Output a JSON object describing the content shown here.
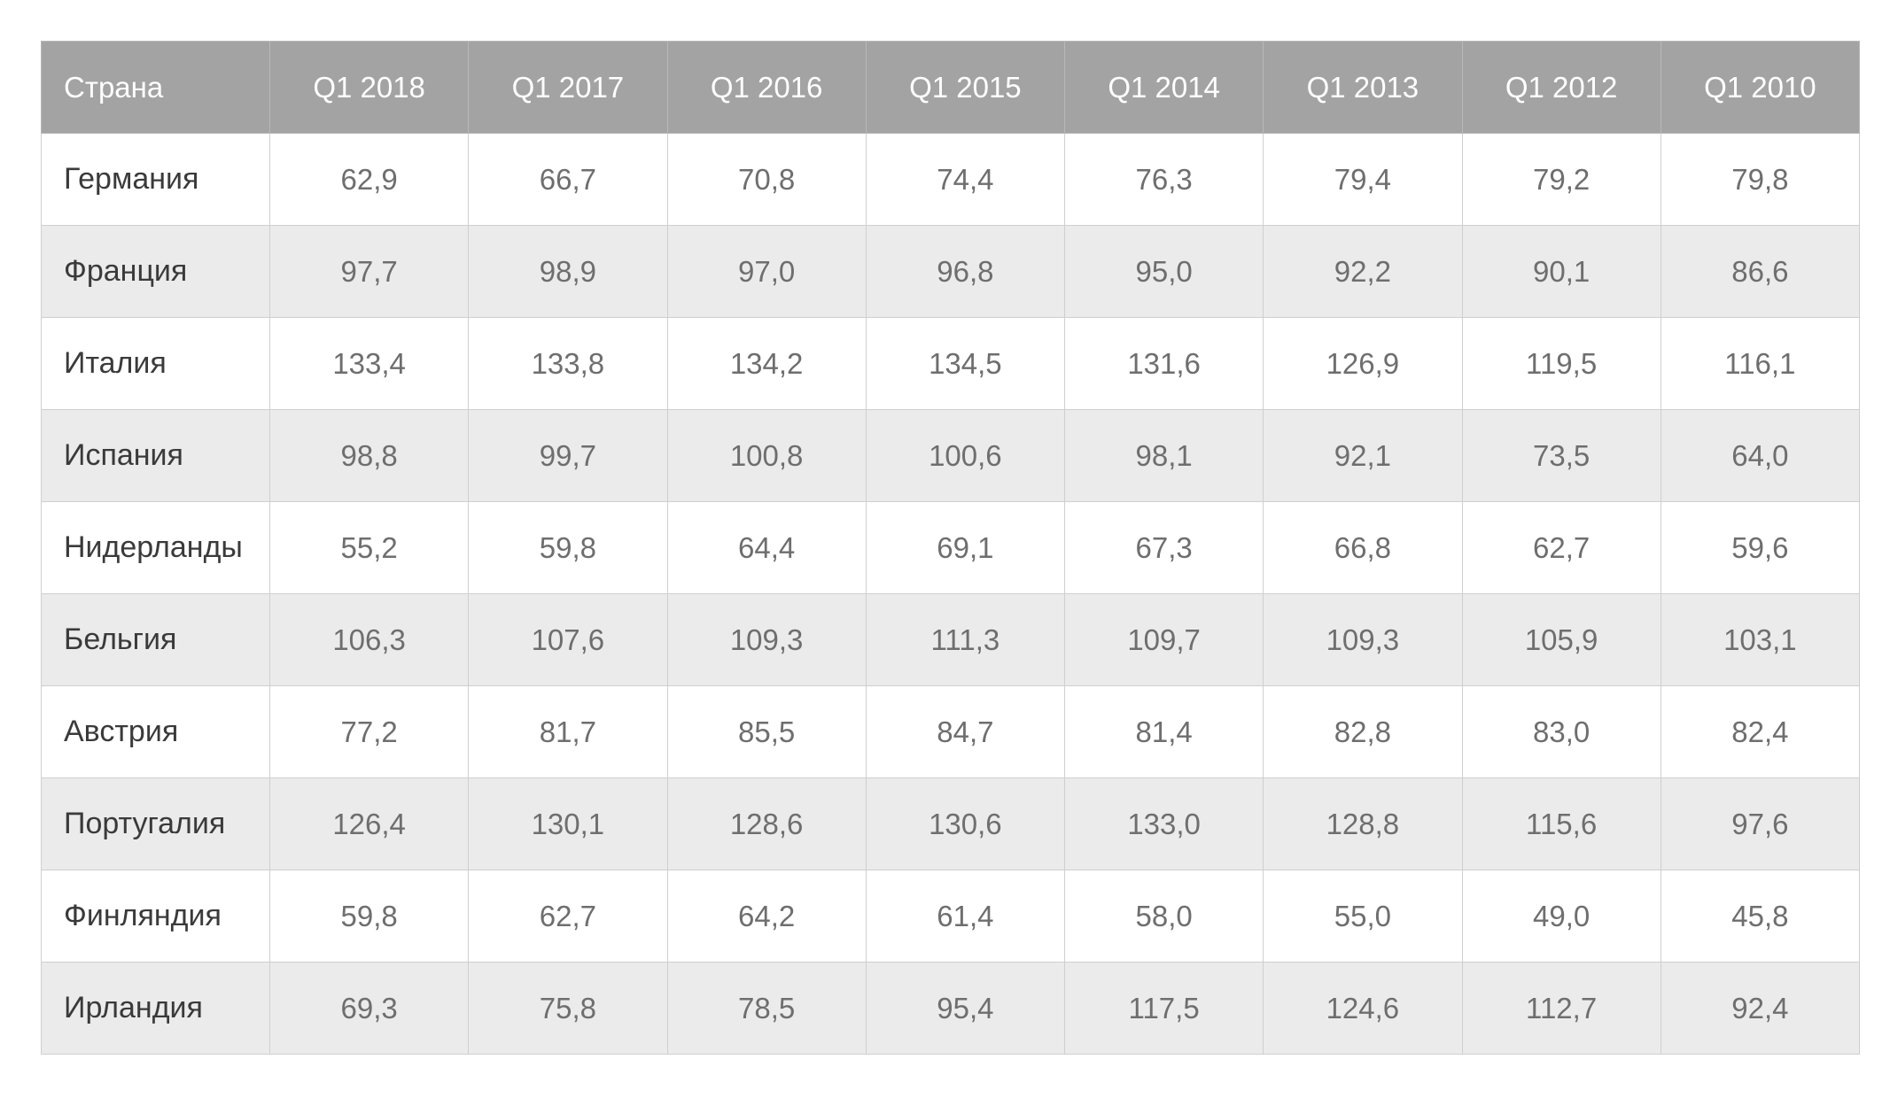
{
  "table": {
    "headers": [
      "Страна",
      "Q1 2018",
      "Q1 2017",
      "Q1 2016",
      "Q1 2015",
      "Q1 2014",
      "Q1 2013",
      "Q1 2012",
      "Q1 2010"
    ],
    "rows": [
      {
        "country": "Германия",
        "values": [
          "62,9",
          "66,7",
          "70,8",
          "74,4",
          "76,3",
          "79,4",
          "79,2",
          "79,8"
        ]
      },
      {
        "country": "Франция",
        "values": [
          "97,7",
          "98,9",
          "97,0",
          "96,8",
          "95,0",
          "92,2",
          "90,1",
          "86,6"
        ]
      },
      {
        "country": "Италия",
        "values": [
          "133,4",
          "133,8",
          "134,2",
          "134,5",
          "131,6",
          "126,9",
          "119,5",
          "116,1"
        ]
      },
      {
        "country": "Испания",
        "values": [
          "98,8",
          "99,7",
          "100,8",
          "100,6",
          "98,1",
          "92,1",
          "73,5",
          "64,0"
        ]
      },
      {
        "country": "Нидерланды",
        "values": [
          "55,2",
          "59,8",
          "64,4",
          "69,1",
          "67,3",
          "66,8",
          "62,7",
          "59,6"
        ]
      },
      {
        "country": "Бельгия",
        "values": [
          "106,3",
          "107,6",
          "109,3",
          "111,3",
          "109,7",
          "109,3",
          "105,9",
          "103,1"
        ]
      },
      {
        "country": "Австрия",
        "values": [
          "77,2",
          "81,7",
          "85,5",
          "84,7",
          "81,4",
          "82,8",
          "83,0",
          "82,4"
        ]
      },
      {
        "country": "Португалия",
        "values": [
          "126,4",
          "130,1",
          "128,6",
          "130,6",
          "133,0",
          "128,8",
          "115,6",
          "97,6"
        ]
      },
      {
        "country": "Финляндия",
        "values": [
          "59,8",
          "62,7",
          "64,2",
          "61,4",
          "58,0",
          "55,0",
          "49,0",
          "45,8"
        ]
      },
      {
        "country": "Ирландия",
        "values": [
          "69,3",
          "75,8",
          "78,5",
          "95,4",
          "117,5",
          "124,6",
          "112,7",
          "92,4"
        ]
      }
    ]
  },
  "colors": {
    "header_bg": "#a3a3a3",
    "header_text": "#ffffff",
    "row_alt_bg": "#ebebeb",
    "border": "#cfcfcf",
    "value_text": "#6e6e6e",
    "country_text": "#3a3a3a"
  }
}
